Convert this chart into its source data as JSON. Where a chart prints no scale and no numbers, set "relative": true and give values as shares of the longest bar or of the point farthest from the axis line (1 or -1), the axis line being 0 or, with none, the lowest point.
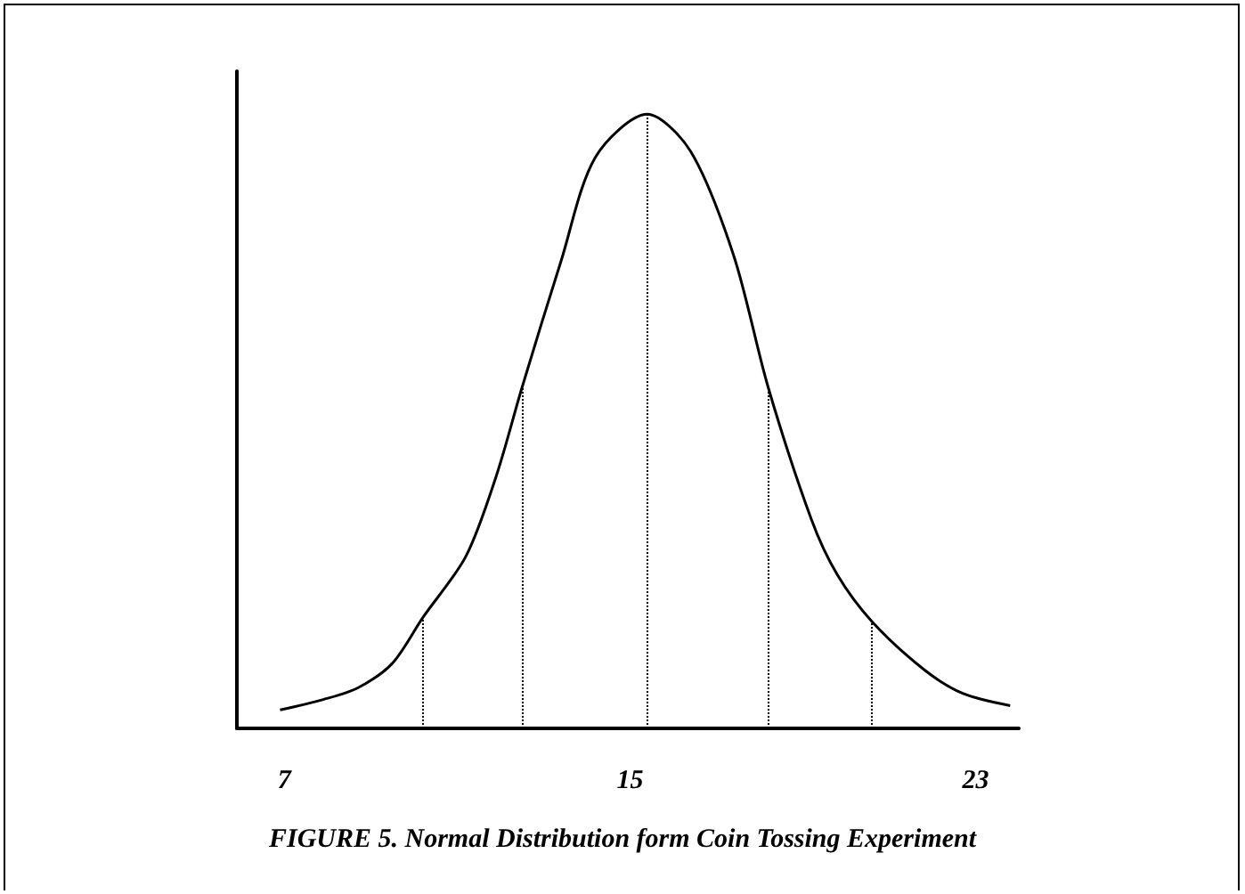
{
  "chart_data": {
    "type": "line",
    "title": "FIGURE 5. Normal Distribution form Coin Tossing Experiment",
    "relative": true,
    "x": [
      6.9,
      7.9,
      8.7,
      9.5,
      10.2,
      11.2,
      11.9,
      12.5,
      13.4,
      14.2,
      15.4,
      16.4,
      17.4,
      18.2,
      19.2,
      19.8,
      20.6,
      21.8,
      22.7,
      23.8
    ],
    "series": [
      {
        "color": "#000000",
        "values": [
          0.03,
          0.047,
          0.066,
          0.106,
          0.18,
          0.28,
          0.41,
          0.555,
          0.76,
          0.93,
          1.0,
          0.94,
          0.77,
          0.555,
          0.34,
          0.25,
          0.174,
          0.096,
          0.057,
          0.037
        ]
      }
    ],
    "xlim": [
      5.9,
      24
    ],
    "xticks": [
      7,
      15,
      23
    ],
    "marker": "none",
    "line_style": "solid",
    "ref_lines": [
      {
        "axis": "x",
        "value": 10.2,
        "color": "#000000",
        "line_style": "dotted"
      },
      {
        "axis": "x",
        "value": 12.5,
        "color": "#000000",
        "line_style": "dotted"
      },
      {
        "axis": "x",
        "value": 15.4,
        "color": "#000000",
        "line_style": "dotted"
      },
      {
        "axis": "x",
        "value": 18.2,
        "color": "#000000",
        "line_style": "dotted"
      },
      {
        "axis": "x",
        "value": 20.6,
        "color": "#000000",
        "line_style": "dotted"
      }
    ]
  }
}
